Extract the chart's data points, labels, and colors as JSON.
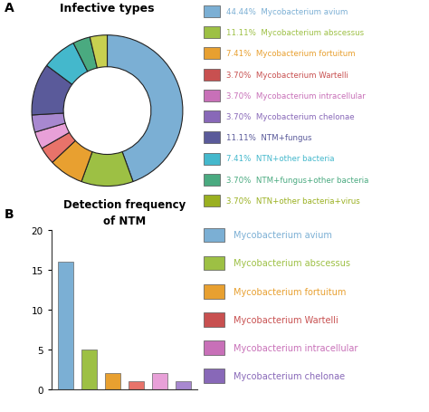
{
  "donut": {
    "title": "Infective types",
    "slices": [
      44.44,
      11.11,
      7.41,
      3.7,
      3.7,
      3.7,
      11.11,
      7.41,
      3.7,
      3.7
    ],
    "colors": [
      "#7bafd4",
      "#9dc044",
      "#e8a030",
      "#e8736a",
      "#e8a0d8",
      "#a888d0",
      "#5a5a9a",
      "#44b8cc",
      "#4aaa80",
      "#c8d050"
    ],
    "labels": [
      "44.44%  Mycobacterium avium",
      "11.11%  Mycobacterium abscessus",
      "7.41%  Mycobacterium fortuitum",
      "3.70%  Mycobacterium Wartelli",
      "3.70%  Mycobacterium intracellular",
      "3.70%  Mycobacterium chelonae",
      "11.11%  NTM+fungus",
      "7.41%  NTN+other bacteria",
      "3.70%  NTM+fungus+other bacteria",
      "3.70%  NTN+other bacteria+virus"
    ],
    "label_colors": [
      "#7bafd4",
      "#9dc044",
      "#e8a030",
      "#c85050",
      "#c870b8",
      "#8868b8",
      "#5a5a9a",
      "#44b8cc",
      "#4aaa80",
      "#9ab020"
    ]
  },
  "bar": {
    "title1": "Detection frequency",
    "title2": "of NTM",
    "categories": [
      "avium",
      "abscessus",
      "fortuitum",
      "Wartelli",
      "intracellular",
      "chelonae"
    ],
    "values": [
      16,
      5,
      2,
      1,
      2,
      1
    ],
    "colors": [
      "#7bafd4",
      "#9dc044",
      "#e8a030",
      "#e8736a",
      "#e8a0d8",
      "#a888d0"
    ],
    "legend_labels": [
      "Mycobacterium avium",
      "Mycobacterium abscessus",
      "Mycobacterium fortuitum",
      "Mycobacterium Wartelli",
      "Mycobacterium intracellular",
      "Mycobacterium chelonae"
    ],
    "legend_colors": [
      "#7bafd4",
      "#9dc044",
      "#e8a030",
      "#c85050",
      "#c870b8",
      "#8868b8"
    ],
    "ylim": [
      0,
      20
    ],
    "yticks": [
      0,
      5,
      10,
      15,
      20
    ]
  },
  "label_A": "A",
  "label_B": "B"
}
